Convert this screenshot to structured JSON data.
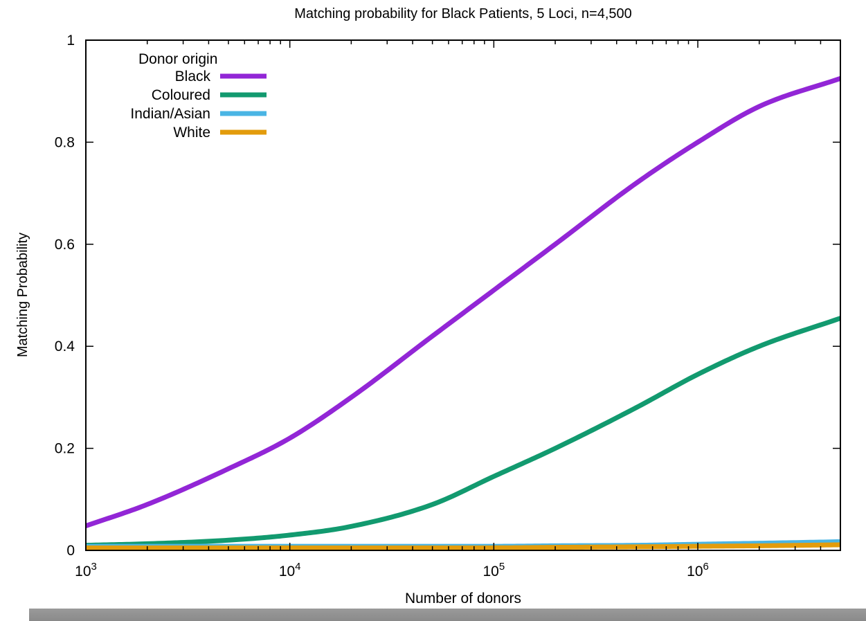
{
  "chart_data": {
    "type": "line",
    "title": "Matching probability for Black Patients, 5 Loci, n=4,500",
    "xlabel": "Number of donors",
    "ylabel": "Matching Probability",
    "x_scale": "log10",
    "xlim": [
      1000,
      5000000
    ],
    "ylim": [
      0,
      1
    ],
    "x_ticks": [
      {
        "value": 1000,
        "base": "10",
        "exp": "3"
      },
      {
        "value": 10000,
        "base": "10",
        "exp": "4"
      },
      {
        "value": 100000,
        "base": "10",
        "exp": "5"
      },
      {
        "value": 1000000,
        "base": "10",
        "exp": "6"
      }
    ],
    "y_ticks": [
      {
        "value": 0,
        "label": "0"
      },
      {
        "value": 0.2,
        "label": "0.2"
      },
      {
        "value": 0.4,
        "label": "0.4"
      },
      {
        "value": 0.6,
        "label": "0.6"
      },
      {
        "value": 0.8,
        "label": "0.8"
      },
      {
        "value": 1,
        "label": "1"
      }
    ],
    "grid": false,
    "legend": {
      "title": "Donor origin",
      "placement": "top-left"
    },
    "x": [
      1000,
      2000,
      5000,
      10000,
      20000,
      50000,
      100000,
      200000,
      500000,
      1000000,
      2000000,
      5000000
    ],
    "series": [
      {
        "name": "Black",
        "color": "#9226d6",
        "values": [
          0.048,
          0.09,
          0.16,
          0.22,
          0.3,
          0.42,
          0.51,
          0.6,
          0.72,
          0.8,
          0.87,
          0.925
        ]
      },
      {
        "name": "Coloured",
        "color": "#129a6f",
        "values": [
          0.01,
          0.013,
          0.02,
          0.03,
          0.047,
          0.09,
          0.145,
          0.2,
          0.28,
          0.345,
          0.4,
          0.455
        ]
      },
      {
        "name": "Indian/Asian",
        "color": "#4ab5e4",
        "values": [
          0.008,
          0.008,
          0.008,
          0.008,
          0.008,
          0.008,
          0.008,
          0.009,
          0.01,
          0.012,
          0.014,
          0.017
        ]
      },
      {
        "name": "White",
        "color": "#e39c0c",
        "values": [
          0.005,
          0.005,
          0.005,
          0.005,
          0.005,
          0.005,
          0.005,
          0.006,
          0.007,
          0.008,
          0.009,
          0.011
        ]
      }
    ]
  }
}
